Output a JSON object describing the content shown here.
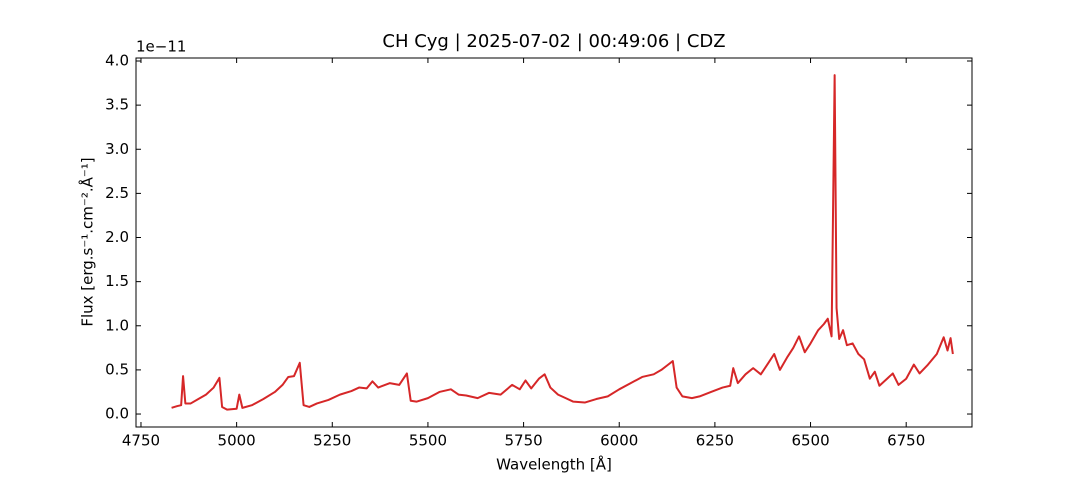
{
  "chart_data": {
    "type": "line",
    "title": "CH Cyg | 2025-07-02 | 00:49:06 | CDZ",
    "xlabel": "Wavelength [Å]",
    "ylabel": "Flux [erg.s⁻¹.cm⁻².Å⁻¹]",
    "y_offset_label": "1e−11",
    "x": [
      4830,
      4845,
      4855,
      4860,
      4866,
      4880,
      4900,
      4920,
      4940,
      4955,
      4962,
      4975,
      5000,
      5007,
      5015,
      5040,
      5070,
      5100,
      5120,
      5135,
      5150,
      5165,
      5175,
      5190,
      5210,
      5240,
      5270,
      5300,
      5320,
      5340,
      5355,
      5370,
      5400,
      5425,
      5445,
      5455,
      5470,
      5500,
      5530,
      5560,
      5580,
      5600,
      5630,
      5660,
      5690,
      5720,
      5740,
      5755,
      5770,
      5790,
      5805,
      5820,
      5840,
      5860,
      5880,
      5910,
      5940,
      5970,
      6000,
      6030,
      6060,
      6090,
      6110,
      6125,
      6140,
      6150,
      6165,
      6190,
      6210,
      6240,
      6270,
      6290,
      6298,
      6310,
      6330,
      6350,
      6370,
      6390,
      6405,
      6420,
      6440,
      6455,
      6470,
      6485,
      6500,
      6520,
      6535,
      6545,
      6555,
      6563,
      6568,
      6575,
      6585,
      6595,
      6610,
      6625,
      6640,
      6655,
      6668,
      6680,
      6700,
      6715,
      6730,
      6750,
      6770,
      6785,
      6805,
      6830,
      6848,
      6858,
      6866,
      6872
    ],
    "series": [
      {
        "color": "#d62728",
        "values": [
          0.07,
          0.09,
          0.1,
          0.43,
          0.12,
          0.12,
          0.17,
          0.22,
          0.3,
          0.41,
          0.08,
          0.05,
          0.06,
          0.22,
          0.07,
          0.1,
          0.17,
          0.25,
          0.33,
          0.42,
          0.43,
          0.58,
          0.1,
          0.08,
          0.12,
          0.16,
          0.22,
          0.26,
          0.3,
          0.29,
          0.37,
          0.3,
          0.35,
          0.33,
          0.46,
          0.15,
          0.14,
          0.18,
          0.25,
          0.28,
          0.22,
          0.21,
          0.18,
          0.24,
          0.22,
          0.33,
          0.28,
          0.38,
          0.29,
          0.4,
          0.45,
          0.3,
          0.22,
          0.18,
          0.14,
          0.13,
          0.17,
          0.2,
          0.28,
          0.35,
          0.42,
          0.45,
          0.5,
          0.55,
          0.6,
          0.3,
          0.2,
          0.18,
          0.2,
          0.25,
          0.3,
          0.32,
          0.52,
          0.35,
          0.45,
          0.52,
          0.45,
          0.58,
          0.68,
          0.5,
          0.65,
          0.75,
          0.88,
          0.7,
          0.8,
          0.95,
          1.02,
          1.08,
          0.88,
          3.84,
          1.2,
          0.85,
          0.95,
          0.78,
          0.8,
          0.68,
          0.62,
          0.4,
          0.48,
          0.32,
          0.4,
          0.46,
          0.33,
          0.4,
          0.56,
          0.46,
          0.55,
          0.68,
          0.87,
          0.72,
          0.86,
          0.68
        ]
      }
    ],
    "xlim": [
      4737,
      6922
    ],
    "ylim": [
      -0.147,
      4.034
    ],
    "xticks": [
      4750,
      5000,
      5250,
      5500,
      5750,
      6000,
      6250,
      6500,
      6750
    ],
    "yticks": [
      {
        "value": 0,
        "label": "0.0"
      },
      0.5,
      {
        "value": 1,
        "label": "1.0"
      },
      1.5,
      {
        "value": 2,
        "label": "2.0"
      },
      2.5,
      {
        "value": 3,
        "label": "3.0"
      },
      3.5,
      {
        "value": 4,
        "label": "4.0"
      }
    ]
  }
}
